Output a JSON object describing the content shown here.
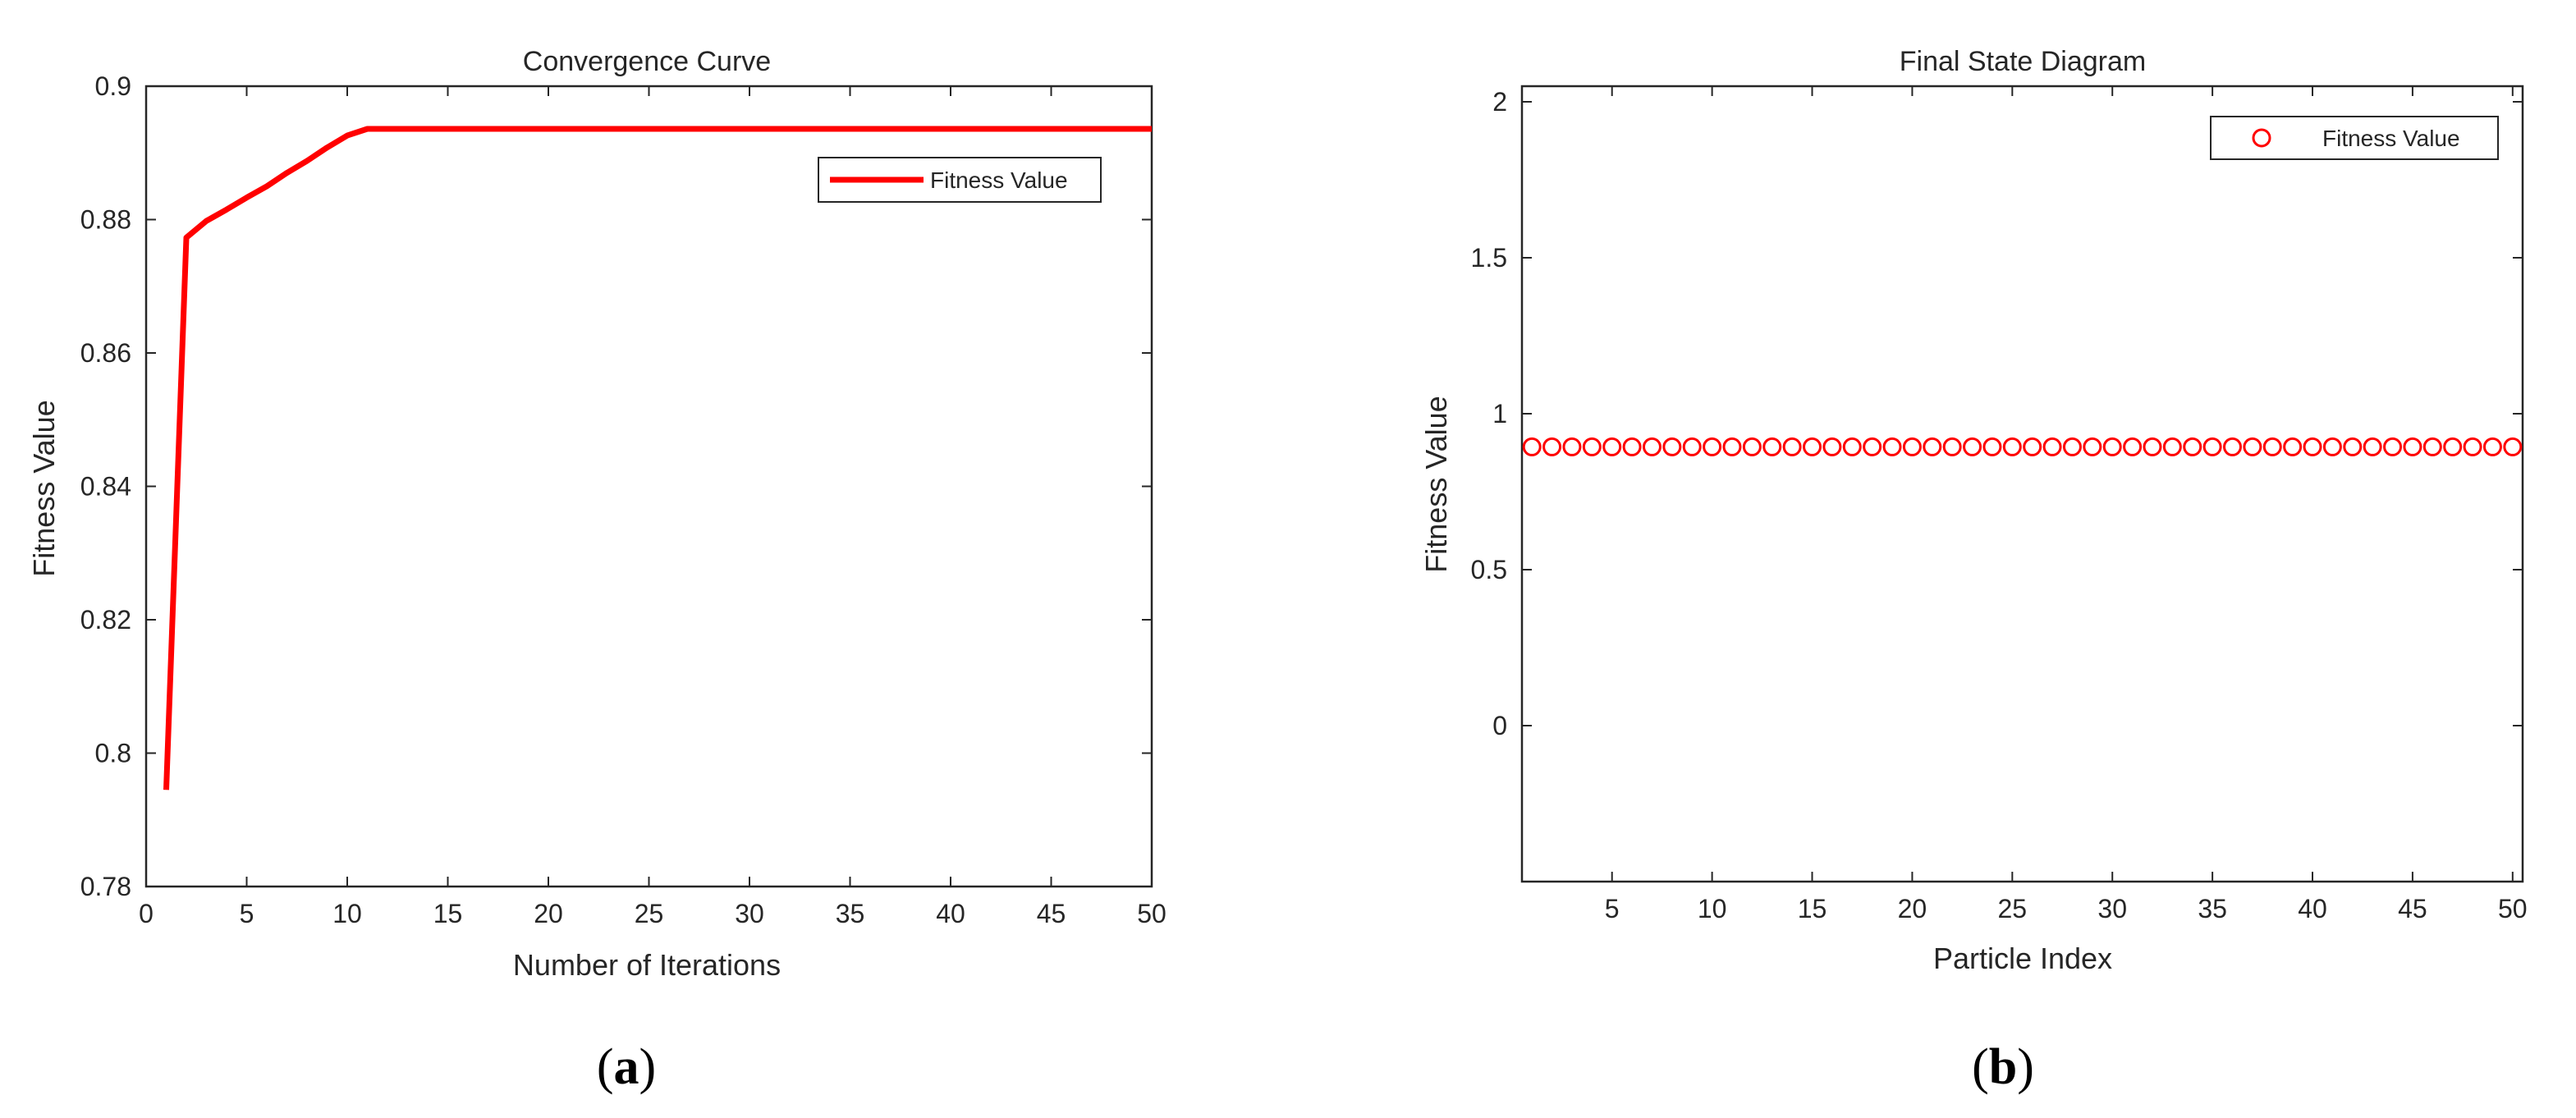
{
  "colors": {
    "series": "#ff0000",
    "axes": "#262626",
    "background": "#ffffff"
  },
  "chart_data": [
    {
      "type": "line",
      "panel_label": "a",
      "title": "Convergence Curve",
      "xlabel": "Number of Iterations",
      "ylabel": "Fitness Value",
      "xlim": [
        0,
        50
      ],
      "ylim": [
        0.78,
        0.9
      ],
      "xticks": [
        0,
        5,
        10,
        15,
        20,
        25,
        30,
        35,
        40,
        45,
        50
      ],
      "yticks": [
        0.78,
        0.8,
        0.82,
        0.84,
        0.86,
        0.88,
        0.9
      ],
      "xtick_labels": [
        "0",
        "5",
        "10",
        "15",
        "20",
        "25",
        "30",
        "35",
        "40",
        "45",
        "50"
      ],
      "ytick_labels": [
        "0.78",
        "0.8",
        "0.82",
        "0.84",
        "0.86",
        "0.88",
        "0.9"
      ],
      "grid": false,
      "legend_position": "top-right",
      "series": [
        {
          "name": "Fitness Value",
          "color": "#ff0000",
          "marker": "line",
          "x": [
            1,
            2,
            3,
            4,
            5,
            6,
            7,
            8,
            9,
            10,
            11,
            12,
            50
          ],
          "y": [
            0.7945,
            0.8773,
            0.8798,
            0.8815,
            0.8833,
            0.885,
            0.887,
            0.8888,
            0.8908,
            0.8926,
            0.8936,
            0.8936,
            0.8936
          ]
        }
      ]
    },
    {
      "type": "scatter",
      "panel_label": "b",
      "title": "Final State Diagram",
      "xlabel": "Particle Index",
      "ylabel": "Fitness Value",
      "xlim": [
        0.5,
        50.5
      ],
      "ylim": [
        -0.5,
        2.05
      ],
      "xticks": [
        5,
        10,
        15,
        20,
        25,
        30,
        35,
        40,
        45,
        50
      ],
      "yticks": [
        0,
        0.5,
        1,
        1.5,
        2
      ],
      "xtick_labels": [
        "5",
        "10",
        "15",
        "20",
        "25",
        "30",
        "35",
        "40",
        "45",
        "50"
      ],
      "ytick_labels": [
        "0",
        "0.5",
        "1",
        "1.5",
        "2"
      ],
      "grid": false,
      "legend_position": "top-right",
      "series": [
        {
          "name": "Fitness Value",
          "color": "#ff0000",
          "marker": "circle",
          "x": [
            1,
            2,
            3,
            4,
            5,
            6,
            7,
            8,
            9,
            10,
            11,
            12,
            13,
            14,
            15,
            16,
            17,
            18,
            19,
            20,
            21,
            22,
            23,
            24,
            25,
            26,
            27,
            28,
            29,
            30,
            31,
            32,
            33,
            34,
            35,
            36,
            37,
            38,
            39,
            40,
            41,
            42,
            43,
            44,
            45,
            46,
            47,
            48,
            49,
            50
          ],
          "y": [
            0.8936,
            0.8936,
            0.8936,
            0.8936,
            0.8936,
            0.8936,
            0.8936,
            0.8936,
            0.8936,
            0.8936,
            0.8936,
            0.8936,
            0.8936,
            0.8936,
            0.8936,
            0.8936,
            0.8936,
            0.8936,
            0.8936,
            0.8936,
            0.8936,
            0.8936,
            0.8936,
            0.8936,
            0.8936,
            0.8936,
            0.8936,
            0.8936,
            0.8936,
            0.8936,
            0.8936,
            0.8936,
            0.8936,
            0.8936,
            0.8936,
            0.8936,
            0.8936,
            0.8936,
            0.8936,
            0.8936,
            0.8936,
            0.8936,
            0.8936,
            0.8936,
            0.8936,
            0.8936,
            0.8936,
            0.8936,
            0.8936,
            0.8936
          ]
        }
      ]
    }
  ]
}
